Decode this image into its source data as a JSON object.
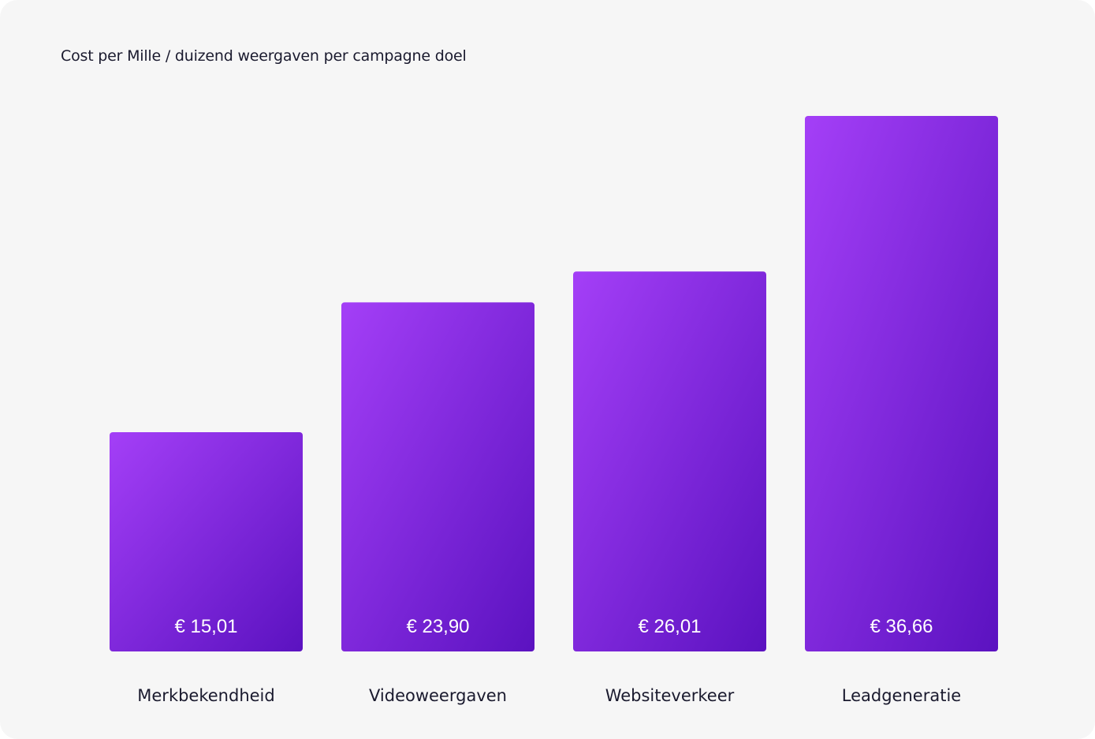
{
  "chart_data": {
    "type": "bar",
    "title": "Cost per Mille / duizend weergaven per campagne doel",
    "xlabel": "",
    "ylabel": "",
    "categories": [
      "Merkbekendheid",
      "Videoweergaven",
      "Websiteverkeer",
      "Leadgeneratie"
    ],
    "values": [
      15.01,
      23.9,
      26.01,
      36.66
    ],
    "value_labels": [
      "€ 15,01",
      "€ 23,90",
      "€ 26,01",
      "€ 36,66"
    ],
    "ylim": [
      0,
      36.66
    ],
    "grid": false,
    "legend": "none",
    "colors": {
      "bar_light": "#a43ff7",
      "bar_dark": "#5b12c0",
      "background": "#f6f6f6",
      "text": "#1a1a2e"
    }
  }
}
